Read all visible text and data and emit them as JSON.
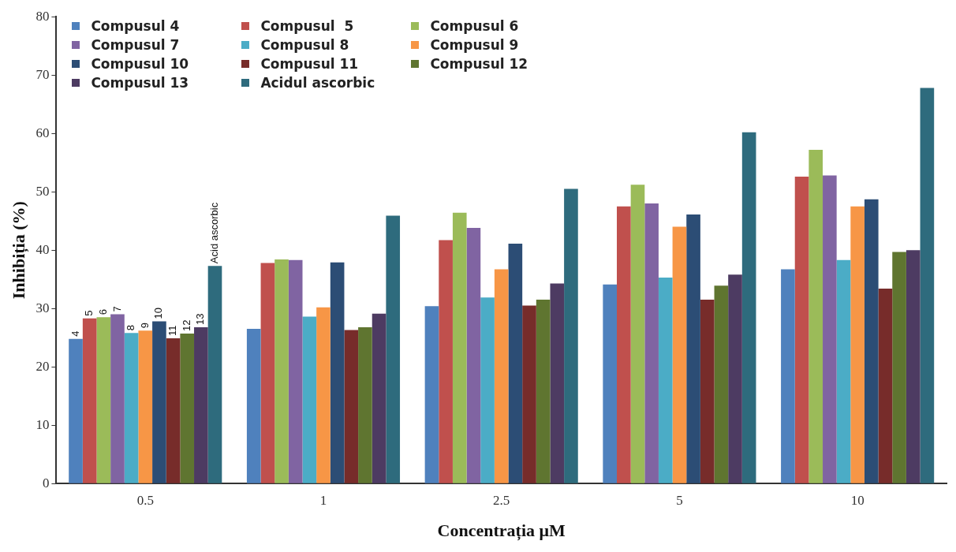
{
  "chart_data": {
    "type": "bar",
    "xlabel": "Concentrația μM",
    "ylabel": "Inhibiția (%)",
    "categories": [
      "0.5",
      "1",
      "2.5",
      "5",
      "10"
    ],
    "ylim": [
      0,
      80
    ],
    "yticks": [
      0,
      10,
      20,
      30,
      40,
      50,
      60,
      70,
      80
    ],
    "grid": false,
    "legend": "top left",
    "series": [
      {
        "name": "Compusul 4",
        "color": "#4f81bd",
        "values": [
          24.8,
          26.5,
          30.4,
          34.1,
          36.7
        ]
      },
      {
        "name": "Compusul  5",
        "color": "#c0504d",
        "values": [
          28.3,
          37.8,
          41.7,
          47.5,
          52.6
        ]
      },
      {
        "name": "Compusul 6",
        "color": "#9bbb59",
        "values": [
          28.5,
          38.4,
          46.4,
          51.2,
          57.2
        ]
      },
      {
        "name": "Compusul 7",
        "color": "#8064a2",
        "values": [
          29,
          38.3,
          43.8,
          48,
          52.8
        ]
      },
      {
        "name": "Compusul 8",
        "color": "#4bacc6",
        "values": [
          25.8,
          28.6,
          31.9,
          35.3,
          38.3
        ]
      },
      {
        "name": "Compusul 9",
        "color": "#f79646",
        "values": [
          26.2,
          30.2,
          36.7,
          44,
          47.5
        ]
      },
      {
        "name": "Compusul 10",
        "color": "#2c4d75",
        "values": [
          27.8,
          37.9,
          41.1,
          46.1,
          48.7
        ]
      },
      {
        "name": "Compusul 11",
        "color": "#772c2a",
        "values": [
          24.9,
          26.3,
          30.5,
          31.5,
          33.4
        ]
      },
      {
        "name": "Compusul 12",
        "color": "#5f7530",
        "values": [
          25.7,
          26.8,
          31.5,
          33.9,
          39.7
        ]
      },
      {
        "name": "Compusul 13",
        "color": "#4d3b62",
        "values": [
          26.8,
          29.1,
          34.3,
          35.8,
          40
        ]
      },
      {
        "name": "Acidul ascorbic",
        "color": "#2e6b7d",
        "values": [
          37.3,
          45.9,
          50.5,
          60.2,
          67.8
        ]
      }
    ],
    "annotations": [
      "4",
      "5",
      "6",
      "7",
      "8",
      "9",
      "10",
      "11",
      "12",
      "13",
      "Acid ascorbic"
    ]
  }
}
